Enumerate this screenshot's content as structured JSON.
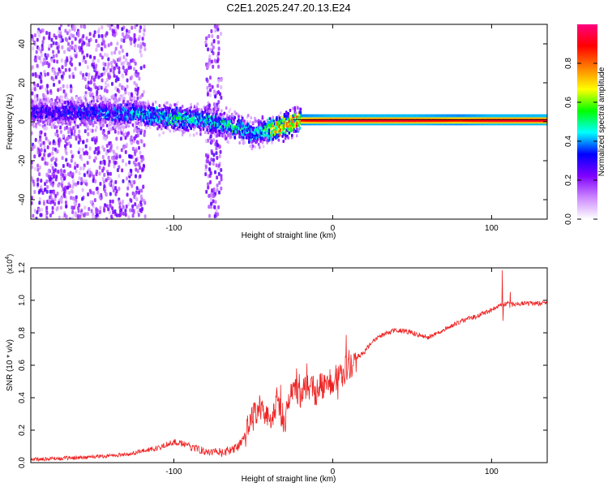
{
  "title": "C2E1.2025.247.20.13.E24",
  "chart_data": [
    {
      "type": "heatmap",
      "name": "spectrogram",
      "title": "C2E1.2025.247.20.13.E24",
      "xlabel": "Height of straight line (km)",
      "ylabel": "Frequency (Hz)",
      "xlim": [
        -190,
        135
      ],
      "ylim": [
        -50,
        50
      ],
      "xticks": [
        -100,
        0,
        100
      ],
      "yticks": [
        -40,
        -20,
        0,
        20,
        40
      ],
      "colorbar": {
        "label": "Normalized spectral amplitude",
        "range": [
          0,
          1
        ],
        "ticks": [
          "0.0",
          "0.2",
          "0.4",
          "0.6",
          "0.8"
        ],
        "colors": [
          "#ffffff",
          "#cc88ff",
          "#8000ff",
          "#0000ff",
          "#00ffff",
          "#00ff00",
          "#ffff00",
          "#ff8000",
          "#ff0000",
          "#ff0080"
        ]
      },
      "band": {
        "description_points_x": [
          -190,
          -150,
          -120,
          -100,
          -80,
          -60,
          -50,
          -40,
          -35,
          -25,
          -20,
          0,
          50,
          80,
          100,
          135
        ],
        "center_hz": [
          5,
          5,
          4,
          2,
          1,
          -3,
          -6,
          -4,
          -3,
          0,
          1,
          1,
          1,
          1,
          1,
          1
        ],
        "peak_amplitude": [
          0.3,
          0.35,
          0.45,
          0.5,
          0.45,
          0.5,
          0.4,
          0.6,
          0.8,
          0.75,
          0.9,
          0.95,
          0.95,
          0.9,
          0.95,
          0.95
        ]
      }
    },
    {
      "type": "line",
      "name": "snr",
      "xlabel": "Height of straight line (km)",
      "ylabel": "SNR (10 * v/v)",
      "y_multiplier": "(x10^4)",
      "xlim": [
        -190,
        135
      ],
      "ylim": [
        0,
        1.2
      ],
      "xticks": [
        -100,
        0,
        100
      ],
      "yticks": [
        "0.0",
        "0.2",
        "0.4",
        "0.6",
        "0.8",
        "1.0",
        "1.2"
      ],
      "color": "#ee2222",
      "x": [
        -190,
        -160,
        -130,
        -110,
        -100,
        -90,
        -80,
        -70,
        -60,
        -55,
        -50,
        -45,
        -42,
        -40,
        -35,
        -30,
        -25,
        -20,
        -15,
        -10,
        -5,
        0,
        5,
        10,
        15,
        20,
        25,
        30,
        40,
        50,
        60,
        70,
        80,
        90,
        100,
        105,
        110,
        115,
        120,
        135
      ],
      "y": [
        0.02,
        0.03,
        0.05,
        0.09,
        0.13,
        0.1,
        0.07,
        0.06,
        0.09,
        0.18,
        0.28,
        0.35,
        0.3,
        0.25,
        0.38,
        0.25,
        0.45,
        0.4,
        0.48,
        0.43,
        0.5,
        0.5,
        0.55,
        0.58,
        0.65,
        0.68,
        0.75,
        0.78,
        0.82,
        0.8,
        0.77,
        0.82,
        0.87,
        0.9,
        0.94,
        0.97,
        0.98,
        0.97,
        0.98,
        0.98
      ]
    }
  ]
}
